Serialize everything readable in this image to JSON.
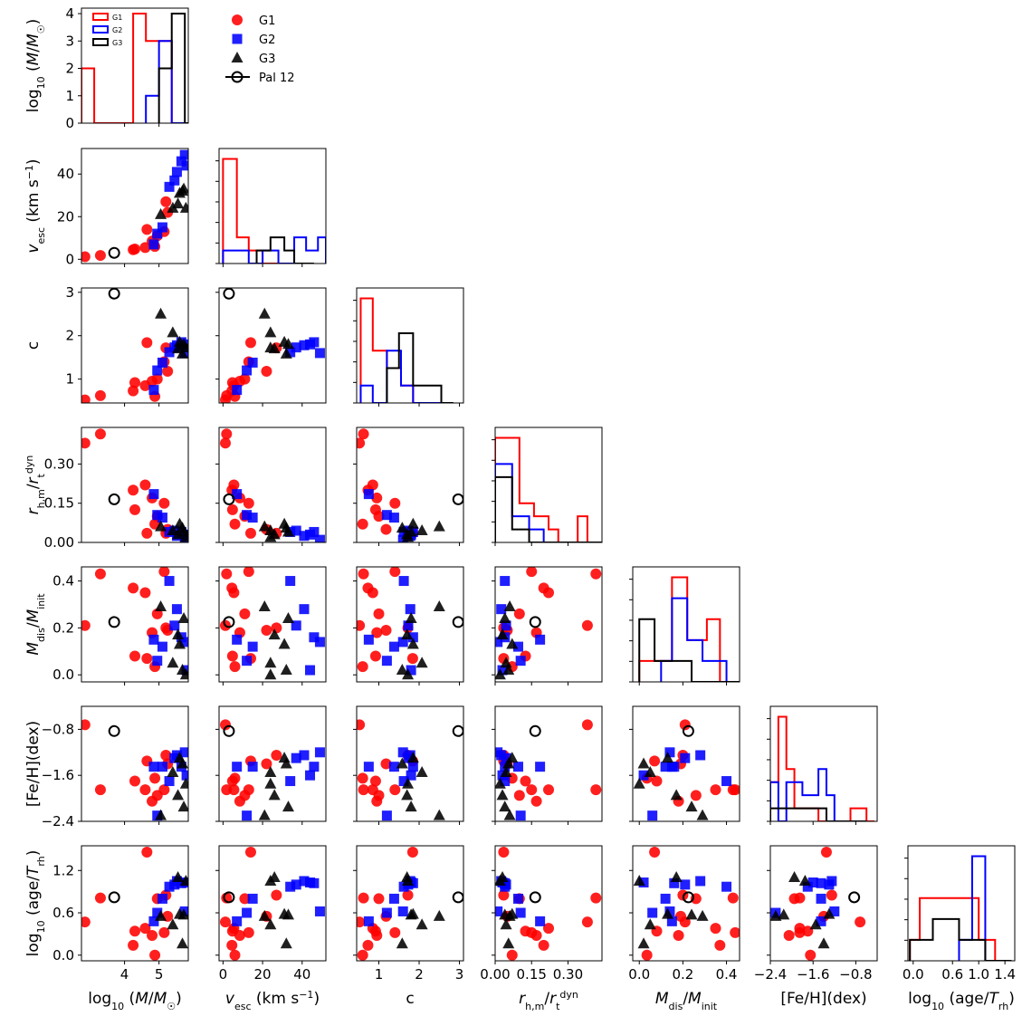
{
  "chart_data": {
    "type": "scatter",
    "subtype": "corner-plot",
    "variables": [
      {
        "key": "logM",
        "label": "log10 (M/M☉)",
        "range": [
          2.75,
          5.85
        ],
        "ticks": [
          4,
          5
        ],
        "tick_labels": [
          "4",
          "5"
        ],
        "diag_max": 4.2,
        "diag_ticks": [
          0,
          1,
          2,
          3,
          4
        ],
        "diag_tick_labels": [
          "0",
          "1",
          "2",
          "3",
          "4"
        ]
      },
      {
        "key": "vesc",
        "label": "v_esc (km s⁻¹)",
        "range": [
          -2,
          52
        ],
        "ticks": [
          0,
          20,
          40
        ],
        "tick_labels": [
          "0",
          "20",
          "40"
        ],
        "minor_ticks": [
          10,
          30,
          50
        ]
      },
      {
        "key": "c",
        "label": "c",
        "range": [
          0.45,
          3.1
        ],
        "ticks": [
          1,
          2,
          3
        ],
        "tick_labels": [
          "1",
          "2",
          "3"
        ]
      },
      {
        "key": "rhm",
        "label": "r_h,m/r_t^dyn",
        "range": [
          0,
          0.44
        ],
        "ticks": [
          0.0,
          0.15,
          0.3
        ],
        "tick_labels": [
          "0.00",
          "0.15",
          "0.30"
        ]
      },
      {
        "key": "mdis",
        "label": "M_dis/M_init",
        "range": [
          -0.03,
          0.46
        ],
        "ticks": [
          0.0,
          0.2,
          0.4
        ],
        "tick_labels": [
          "0.0",
          "0.2",
          "0.4"
        ]
      },
      {
        "key": "feh",
        "label": "[Fe/H](dex)",
        "range": [
          -2.4,
          -0.4
        ],
        "ticks": [
          -2.4,
          -1.6,
          -0.8
        ],
        "tick_labels": [
          "−2.4",
          "−1.6",
          "−0.8"
        ]
      },
      {
        "key": "age",
        "label": "log10 (age/T_rh)",
        "range": [
          -0.08,
          1.55
        ],
        "ticks": [
          0.0,
          0.6,
          1.2
        ],
        "tick_labels": [
          "0.0",
          "0.6",
          "1.2"
        ],
        "diag_ticks_x": [
          0.0,
          0.6,
          1.0,
          1.4
        ],
        "diag_tick_labels_x": [
          "0.0",
          "0.6",
          "1.0",
          "1.4"
        ]
      }
    ],
    "series": [
      {
        "name": "G1",
        "color": "#ff0000",
        "marker": "circle",
        "points": [
          [
            2.85,
            1.2,
            0.52,
            0.38,
            0.21,
            -0.72,
            0.47
          ],
          [
            3.3,
            1.8,
            0.62,
            0.415,
            0.43,
            -1.85,
            0.81
          ],
          [
            4.25,
            4.5,
            0.73,
            0.2,
            0.37,
            -0.3,
            0.14
          ],
          [
            4.3,
            4.8,
            0.92,
            0.125,
            0.08,
            -1.7,
            0.34
          ],
          [
            4.6,
            5.5,
            0.85,
            0.22,
            0.35,
            -1.85,
            0.38
          ],
          [
            4.65,
            14.0,
            1.84,
            0.035,
            0.07,
            -1.35,
            1.46
          ],
          [
            4.8,
            8.5,
            0.95,
            0.17,
            0.18,
            -2.05,
            0.28
          ],
          [
            4.88,
            6.0,
            0.6,
            0.07,
            0.035,
            -1.65,
            0.0
          ],
          [
            4.95,
            11.0,
            1.0,
            0.1,
            0.26,
            -1.95,
            0.8
          ],
          [
            5.15,
            13.0,
            1.4,
            0.15,
            0.44,
            -1.85,
            0.32
          ],
          [
            5.2,
            27.0,
            1.72,
            0.035,
            0.2,
            -1.25,
            0.85
          ],
          [
            5.25,
            22.0,
            1.18,
            0.05,
            0.19,
            -1.4,
            0.55
          ]
        ]
      },
      {
        "name": "G2",
        "color": "#0000ff",
        "marker": "square",
        "points": [
          [
            4.85,
            7.0,
            0.75,
            0.185,
            0.15,
            -1.45,
            0.48
          ],
          [
            4.95,
            12.0,
            1.2,
            0.105,
            0.06,
            -2.3,
            0.6
          ],
          [
            5.1,
            15.0,
            1.38,
            0.095,
            0.12,
            -1.45,
            0.8
          ],
          [
            5.3,
            34.0,
            1.62,
            0.04,
            0.4,
            -1.7,
            0.97
          ],
          [
            5.45,
            37.0,
            1.73,
            0.045,
            0.21,
            -1.3,
            1.0
          ],
          [
            5.52,
            41.0,
            1.78,
            0.025,
            0.28,
            -1.25,
            1.05
          ],
          [
            5.65,
            46.0,
            1.85,
            0.04,
            0.16,
            -1.45,
            1.02
          ],
          [
            5.75,
            49.0,
            1.6,
            0.01,
            0.14,
            -1.2,
            0.62
          ],
          [
            5.8,
            44.0,
            1.8,
            0.03,
            0.02,
            -1.6,
            1.03
          ]
        ]
      },
      {
        "name": "G3",
        "color": "#000000",
        "marker": "triangle",
        "points": [
          [
            5.05,
            21.0,
            2.5,
            0.06,
            0.29,
            -2.3,
            0.55
          ],
          [
            5.4,
            24.0,
            2.07,
            0.045,
            0.05,
            -1.55,
            0.43
          ],
          [
            5.55,
            26.0,
            1.7,
            0.03,
            0.17,
            -1.95,
            1.1
          ],
          [
            5.6,
            31.0,
            1.85,
            0.07,
            0.13,
            -1.3,
            0.58
          ],
          [
            5.68,
            32.0,
            1.58,
            0.055,
            0.02,
            -1.4,
            0.16
          ],
          [
            5.72,
            33.0,
            1.8,
            0.04,
            0.24,
            -2.15,
            0.57
          ],
          [
            5.78,
            24.0,
            1.72,
            0.02,
            0.0,
            -1.75,
            1.05
          ]
        ]
      },
      {
        "name": "Pal 12",
        "color": "#000000",
        "marker": "open-circle",
        "points": [
          [
            3.7,
            3.0,
            2.97,
            0.165,
            0.225,
            -0.83,
            0.82
          ]
        ]
      }
    ],
    "histograms": [
      [
        {
          "group": "G1",
          "edges": [
            2.75,
            3.12,
            4.25,
            4.62,
            5.37,
            5.85
          ],
          "counts": [
            2,
            0,
            4,
            3,
            0
          ]
        },
        {
          "group": "G2",
          "edges": [
            4.62,
            5.0,
            5.37,
            5.85
          ],
          "counts": [
            1,
            3,
            0
          ]
        },
        {
          "group": "G3",
          "edges": [
            5.0,
            5.37,
            5.75,
            5.85
          ],
          "counts": [
            2,
            4,
            0
          ]
        }
      ],
      [
        {
          "group": "G1",
          "edges": [
            0,
            7,
            13,
            20,
            28
          ],
          "counts": [
            8,
            2,
            1,
            0
          ]
        },
        {
          "group": "G2",
          "edges": [
            0,
            7,
            13,
            20,
            28,
            36,
            42,
            48,
            52
          ],
          "counts": [
            1,
            1,
            0,
            1,
            0,
            2,
            1,
            2
          ]
        },
        {
          "group": "G3",
          "edges": [
            17,
            24,
            31,
            36,
            46
          ],
          "counts": [
            1,
            2,
            1,
            0
          ]
        }
      ],
      [
        {
          "group": "G1",
          "edges": [
            0.55,
            0.85,
            1.2,
            1.55,
            1.85,
            2.6
          ],
          "counts": [
            6,
            3,
            2,
            1,
            0
          ]
        },
        {
          "group": "G2",
          "edges": [
            0.55,
            0.85,
            1.2,
            1.55,
            1.85,
            2.6
          ],
          "counts": [
            1,
            0,
            3,
            1,
            0
          ]
        },
        {
          "group": "G3",
          "edges": [
            1.2,
            1.5,
            1.85,
            2.2,
            2.55,
            2.85
          ],
          "counts": [
            2,
            4,
            1,
            1,
            0
          ]
        }
      ],
      [
        {
          "group": "G1",
          "edges": [
            0.0,
            0.1,
            0.16,
            0.22,
            0.26,
            0.34,
            0.38,
            0.44
          ],
          "counts": [
            8,
            3,
            2,
            1,
            0,
            2,
            0
          ]
        },
        {
          "group": "G2",
          "edges": [
            0.0,
            0.07,
            0.14,
            0.2,
            0.28,
            0.44
          ],
          "counts": [
            6,
            2,
            1,
            0,
            0
          ]
        },
        {
          "group": "G3",
          "edges": [
            0.0,
            0.07,
            0.14,
            0.44
          ],
          "counts": [
            5,
            1,
            0
          ]
        }
      ],
      [
        {
          "group": "G1",
          "edges": [
            0.0,
            0.15,
            0.22,
            0.31,
            0.37,
            0.46
          ],
          "counts": [
            1,
            5,
            2,
            3,
            0
          ]
        },
        {
          "group": "G2",
          "edges": [
            0.1,
            0.15,
            0.22,
            0.29,
            0.4,
            0.46
          ],
          "counts": [
            1,
            4,
            2,
            1,
            0
          ]
        },
        {
          "group": "G3",
          "edges": [
            0.0,
            0.07,
            0.15,
            0.24,
            0.3,
            0.46
          ],
          "counts": [
            3,
            1,
            1,
            0,
            0
          ]
        }
      ],
      [
        {
          "group": "G1",
          "edges": [
            -2.4,
            -2.25,
            -2.1,
            -1.95,
            -1.8,
            -1.5,
            -0.9,
            -0.6,
            -0.45
          ],
          "counts": [
            3,
            8,
            4,
            1,
            1,
            0,
            1,
            0
          ]
        },
        {
          "group": "G2",
          "edges": [
            -2.4,
            -2.25,
            -2.1,
            -1.8,
            -1.5,
            -1.35,
            -1.2,
            -0.6
          ],
          "counts": [
            3,
            0,
            3,
            2,
            4,
            2,
            0
          ]
        },
        {
          "group": "G3",
          "edges": [
            -2.4,
            -1.35,
            -0.6
          ],
          "counts": [
            1,
            0
          ]
        }
      ],
      [
        {
          "group": "G1",
          "edges": [
            -0.05,
            0.1,
            0.5,
            1.0,
            1.25,
            1.5
          ],
          "counts": [
            1,
            3,
            3,
            1,
            0
          ]
        },
        {
          "group": "G2",
          "edges": [
            0.7,
            0.9,
            1.1,
            1.5
          ],
          "counts": [
            1,
            5,
            0
          ]
        },
        {
          "group": "G3",
          "edges": [
            -0.05,
            0.3,
            0.7,
            1.1,
            1.5
          ],
          "counts": [
            1,
            2,
            1,
            0
          ]
        }
      ]
    ],
    "legends": {
      "histogram": [
        "G1",
        "G2",
        "G3"
      ],
      "scatter": [
        "G1",
        "G2",
        "G3",
        "Pal 12"
      ]
    }
  }
}
